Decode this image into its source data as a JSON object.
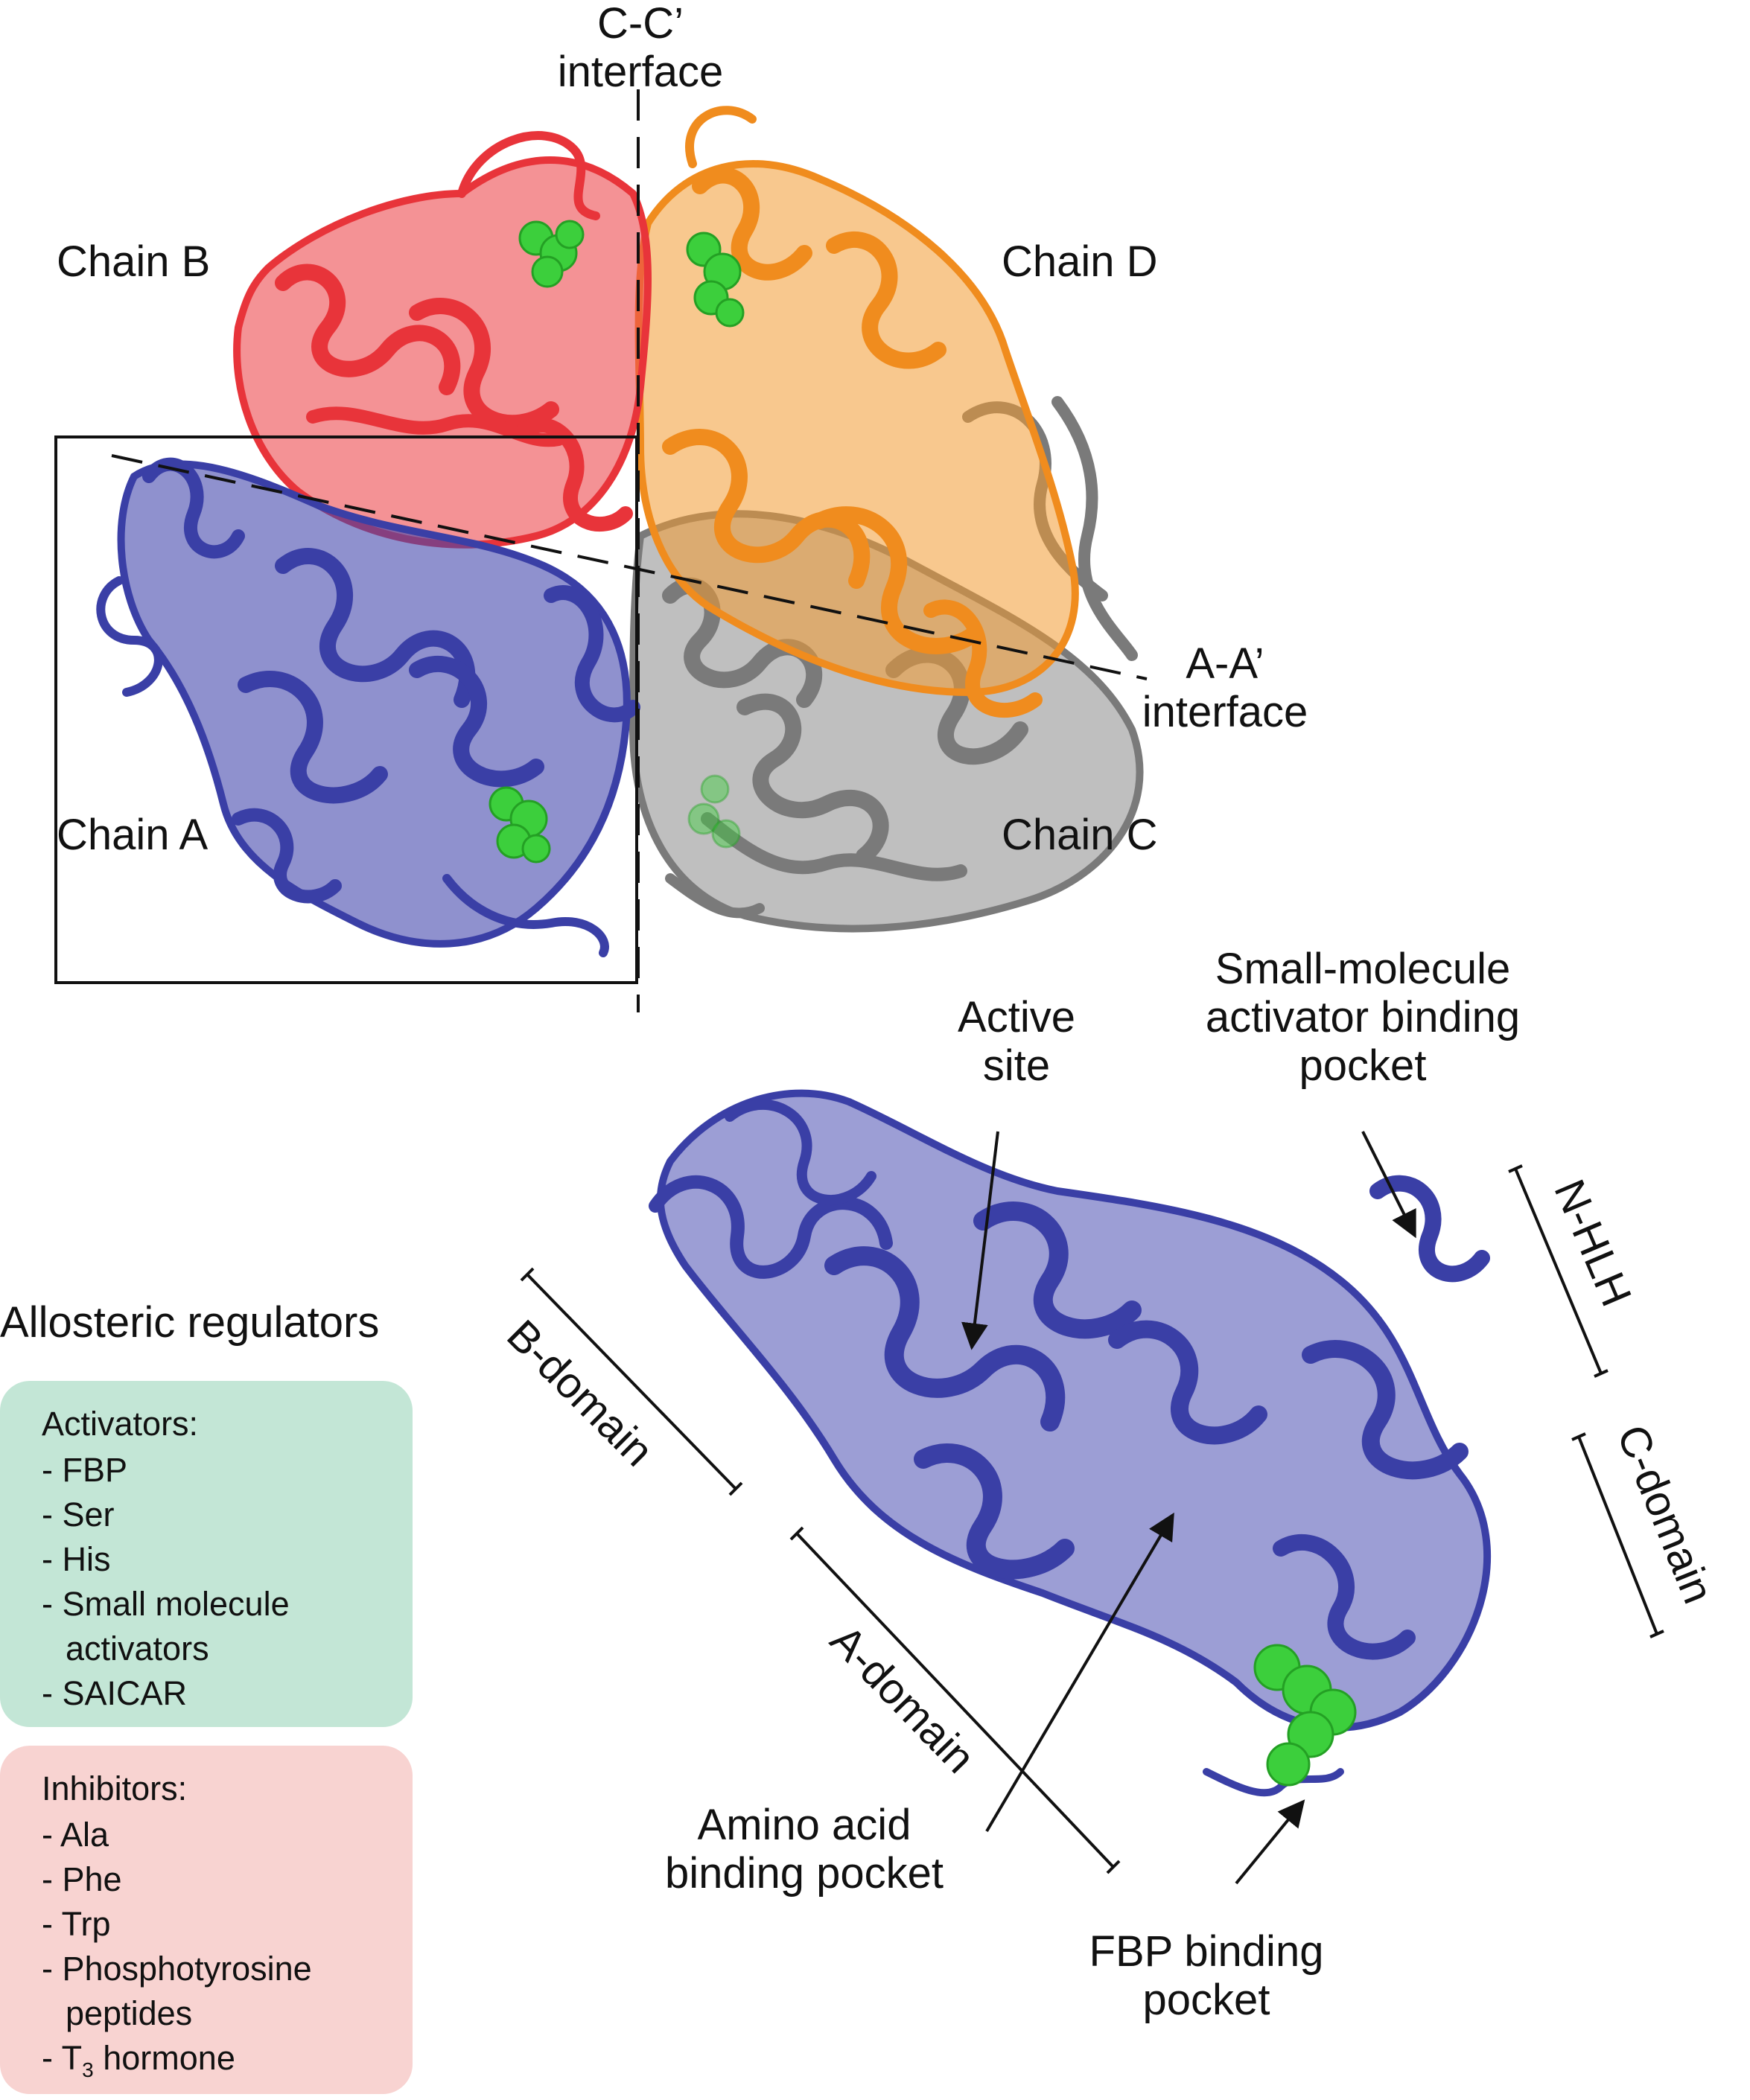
{
  "figure": {
    "cc_interface": [
      "C-C’",
      "interface"
    ],
    "aa_interface": [
      "A-A’",
      "interface"
    ],
    "chains": {
      "b": "Chain B",
      "d": "Chain D",
      "a": "Chain A",
      "c": "Chain C"
    },
    "chain_colors": {
      "a": "#3a3fa6",
      "b": "#e8343a",
      "c": "#7a7a7a",
      "d": "#f08c1e",
      "ligand": "#3ccf3c"
    },
    "annotations": {
      "active_site": [
        "Active",
        "site"
      ],
      "activator_pocket": [
        "Small-molecule",
        "activator binding",
        "pocket"
      ],
      "amino_acid_pocket": [
        "Amino acid",
        "binding pocket"
      ],
      "fbp_pocket": [
        "FBP binding",
        "pocket"
      ]
    },
    "domains": {
      "b": "B-domain",
      "a": "A-domain",
      "c": "C-domain",
      "nhlh": "N-HLH"
    }
  },
  "regulators": {
    "title": "Allosteric regulators",
    "activators": {
      "heading": "Activators:",
      "color": "#c3e6d6",
      "items": [
        "- FBP",
        "- Ser",
        "- His",
        "- Small molecule",
        "activators",
        "- SAICAR"
      ]
    },
    "inhibitors": {
      "heading": "Inhibitors:",
      "color": "#f8d3d1",
      "items": [
        "- Ala",
        "- Phe",
        "- Trp",
        "- Phosphotyrosine",
        "peptides"
      ],
      "last_prefix": "- T",
      "last_sub": "3",
      "last_suffix": " hormone"
    }
  }
}
